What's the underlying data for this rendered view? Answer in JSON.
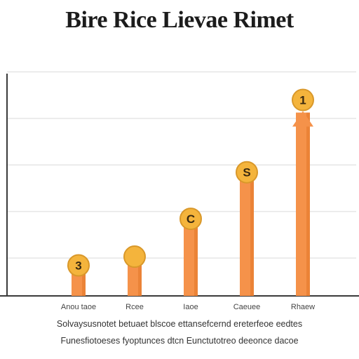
{
  "chart_data": {
    "type": "bar",
    "title": "Bire Rice Lievae Rimet",
    "categories": [
      "Anou taoe",
      "Rcee",
      "Iaoe",
      "Caeuee",
      "Rhaew"
    ],
    "values": [
      1,
      1.3,
      2.6,
      4.2,
      6.3
    ],
    "marker_labels": [
      "3",
      "",
      "C",
      "S",
      "1"
    ],
    "ylim": [
      0,
      8
    ],
    "grid": true,
    "legend": "none",
    "colors": {
      "bar": "#f5924a",
      "bar_dark": "#e57a2c",
      "marker": "#f4b43c",
      "marker_edge": "#d9982a",
      "grid": "#e6e6e6",
      "axis": "#3a3a3a"
    }
  },
  "caption": {
    "line1": "Solvaysusnotet betuaet blscoe ettansefcernd ereterfeoe eedtes",
    "line2": "Funesfiotoeses fyoptunces dtcn Eunctutotreo deeonce dacoe"
  }
}
